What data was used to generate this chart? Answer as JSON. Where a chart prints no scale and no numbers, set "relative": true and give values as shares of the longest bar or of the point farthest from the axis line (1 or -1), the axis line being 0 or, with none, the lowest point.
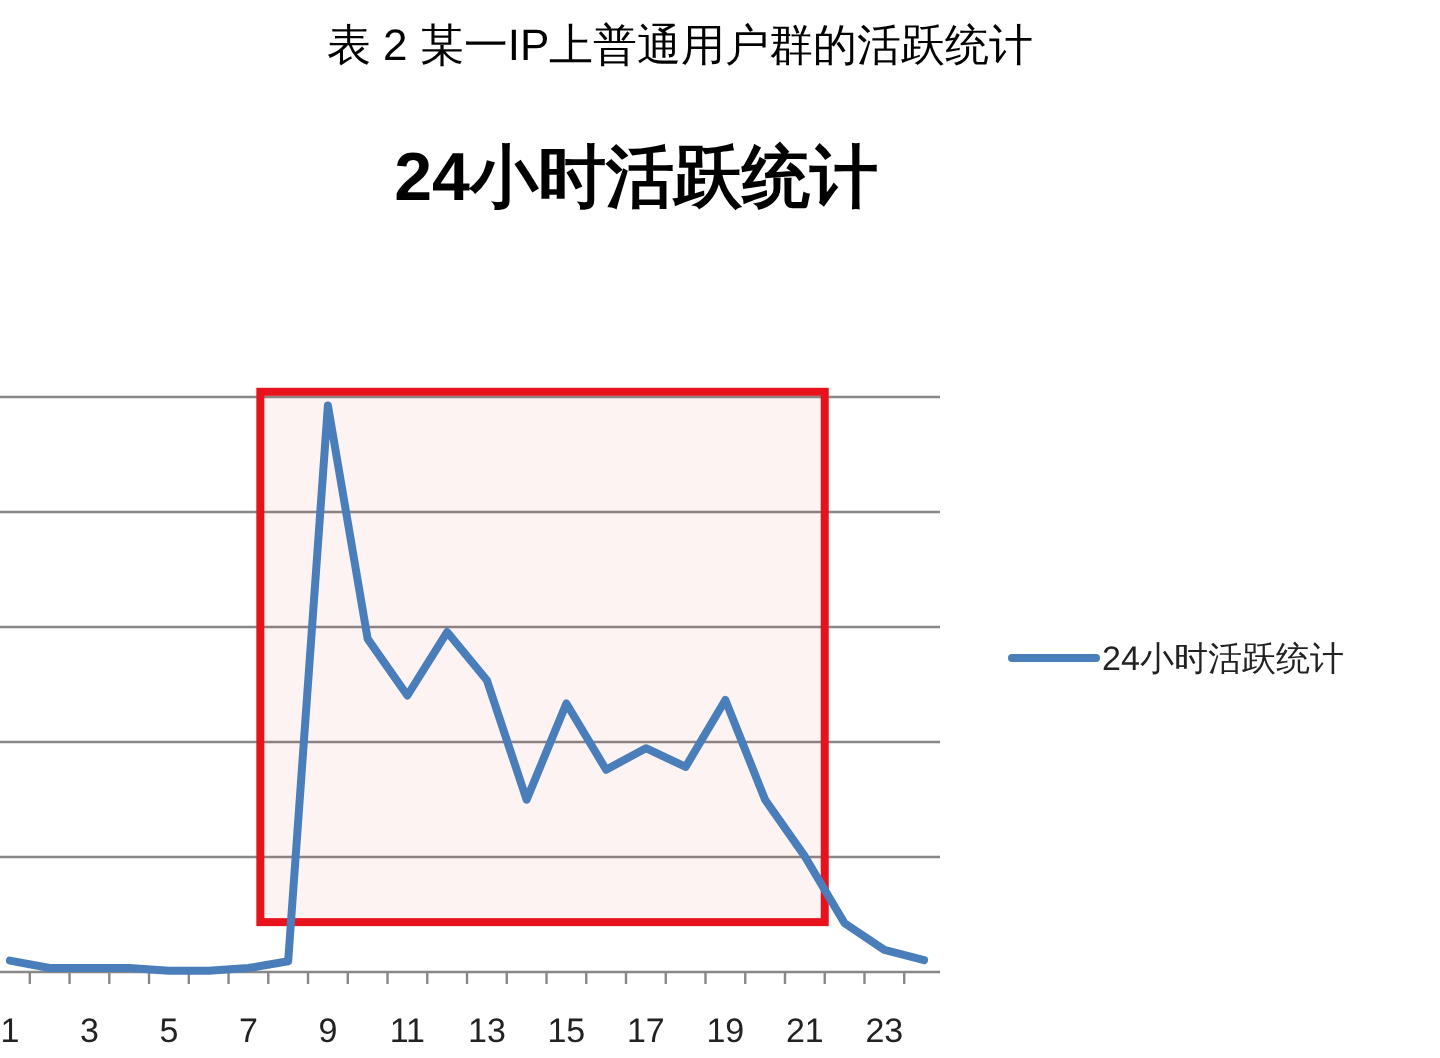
{
  "chart_data": {
    "type": "line",
    "title": "24小时活跃统计",
    "annotations": [
      "表 2 某一IP上普通用户群的活跃统计"
    ],
    "x": [
      1,
      2,
      3,
      4,
      5,
      6,
      7,
      8,
      9,
      10,
      11,
      12,
      13,
      14,
      15,
      16,
      17,
      18,
      19,
      20,
      21,
      22,
      23,
      24
    ],
    "xlim": [
      0.75,
      24.4
    ],
    "xticks": [
      1,
      3,
      5,
      7,
      9,
      11,
      13,
      15,
      17,
      19,
      21,
      23,
      {
        "value": 1.5,
        "label": null
      },
      {
        "value": 2.5,
        "label": null
      },
      {
        "value": 3.5,
        "label": null
      },
      {
        "value": 4.5,
        "label": null
      },
      {
        "value": 5.5,
        "label": null
      },
      {
        "value": 6.5,
        "label": null
      },
      {
        "value": 7.5,
        "label": null
      },
      {
        "value": 8.5,
        "label": null
      },
      {
        "value": 9.5,
        "label": null
      },
      {
        "value": 10.5,
        "label": null
      },
      {
        "value": 11.5,
        "label": null
      },
      {
        "value": 12.5,
        "label": null
      },
      {
        "value": 13.5,
        "label": null
      },
      {
        "value": 14.5,
        "label": null
      },
      {
        "value": 15.5,
        "label": null
      },
      {
        "value": 16.5,
        "label": null
      },
      {
        "value": 17.5,
        "label": null
      },
      {
        "value": 18.5,
        "label": null
      },
      {
        "value": 19.5,
        "label": null
      },
      {
        "value": 20.5,
        "label": null
      },
      {
        "value": 21.5,
        "label": null
      },
      {
        "value": 22.5,
        "label": null
      },
      {
        "value": 23.5,
        "label": null
      }
    ],
    "relative": true,
    "series": [
      {
        "name": "24小时活跃统计",
        "color": "#4a7ebb",
        "values": [
          0.02,
          0.007,
          0.007,
          0.007,
          0.002,
          0.002,
          0.007,
          0.019,
          1,
          0.588,
          0.488,
          0.6,
          0.515,
          0.304,
          0.474,
          0.357,
          0.395,
          0.362,
          0.48,
          0.304,
          0.204,
          0.086,
          0.039,
          0.021
        ]
      }
    ],
    "bands": [
      {
        "axis": "x",
        "from": 7.3,
        "to": 21.5,
        "color": "#e8121c"
      }
    ],
    "grid": "y",
    "legend": "right",
    "marker": "none",
    "line_style": "solid"
  }
}
